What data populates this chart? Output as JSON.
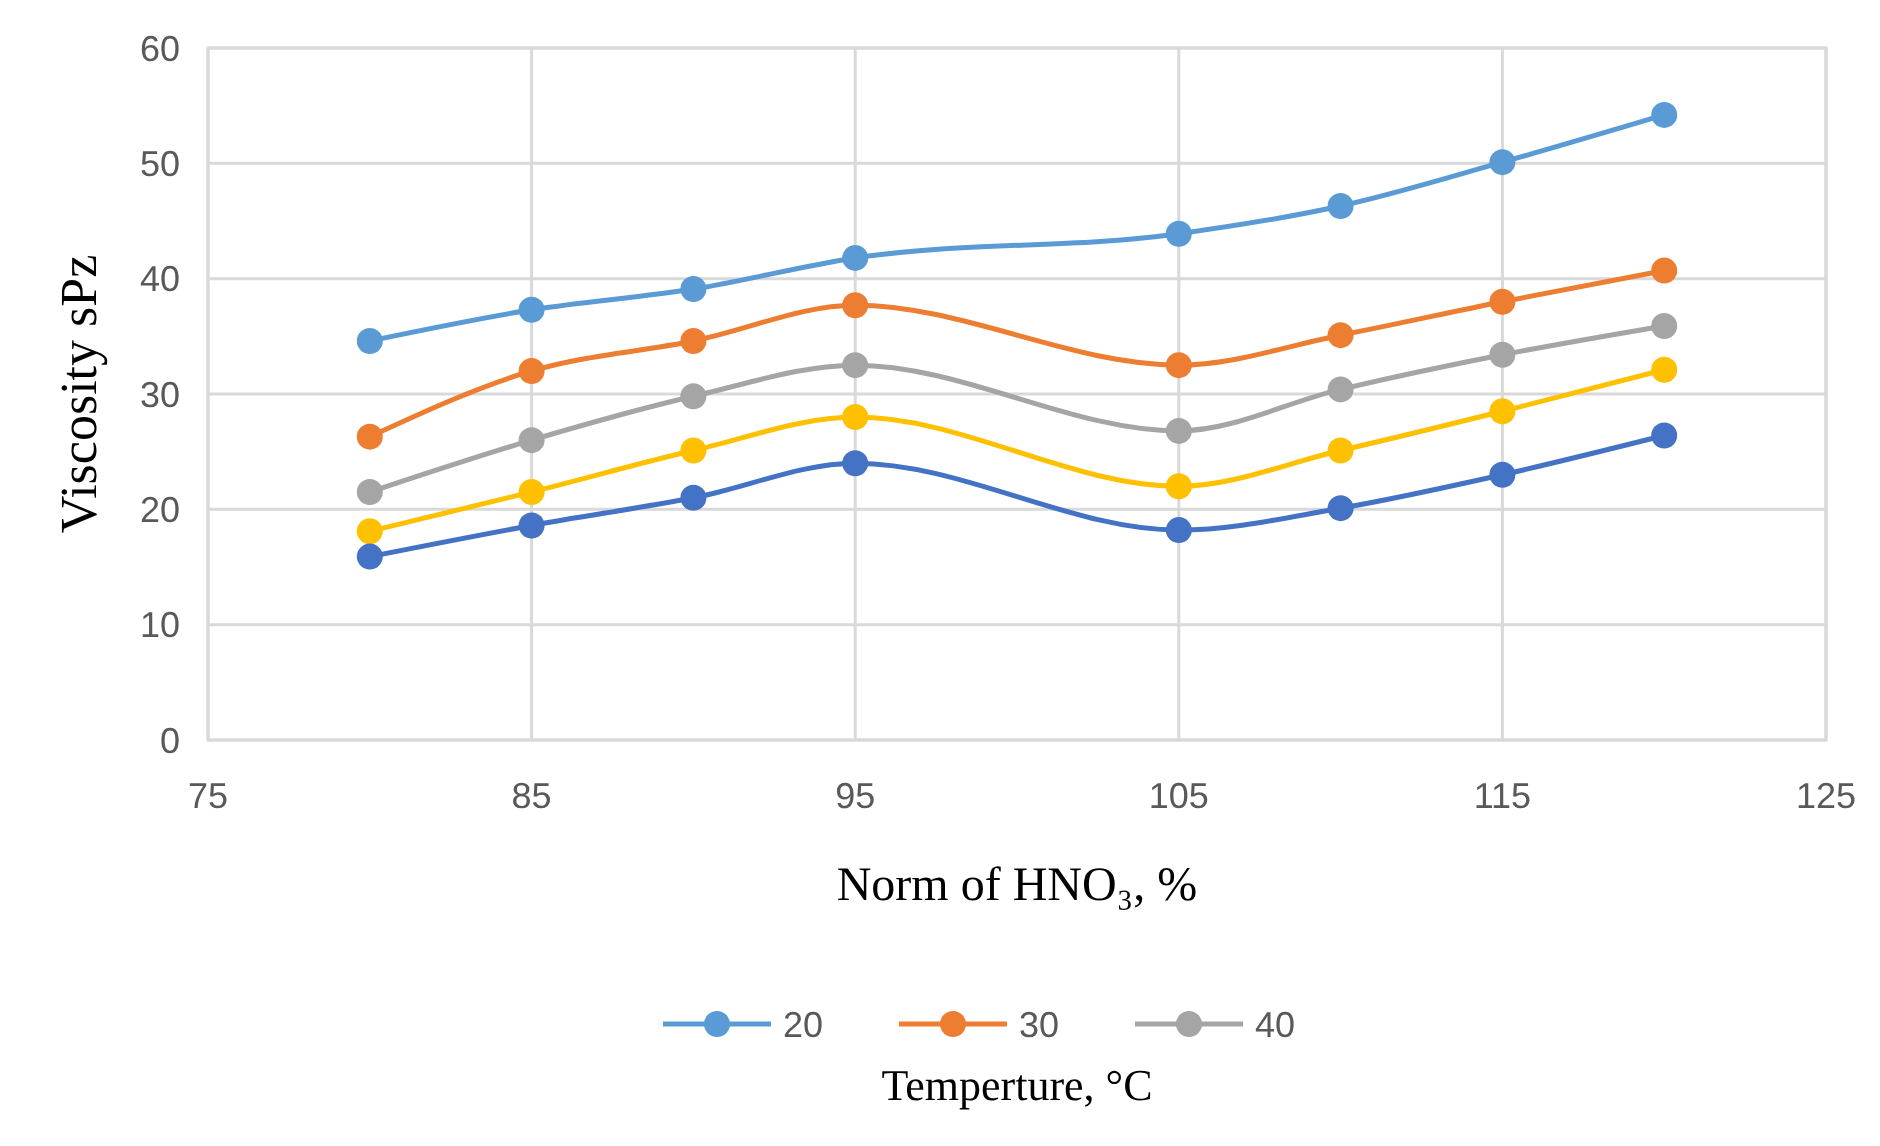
{
  "chart_data": {
    "type": "line",
    "xlabel": "Norm of HNO₃, %",
    "ylabel": "Viscosity sPz",
    "legend_title": "Temperture, °C",
    "x": [
      80,
      85,
      90,
      95,
      105,
      110,
      115,
      120
    ],
    "series": [
      {
        "name": "20",
        "color": "#5b9bd5",
        "values": [
          34.6,
          37.3,
          39.1,
          41.8,
          43.9,
          46.3,
          50.1,
          54.2
        ]
      },
      {
        "name": "30",
        "color": "#ed7d31",
        "values": [
          26.3,
          32.0,
          34.6,
          37.7,
          32.5,
          35.1,
          38.0,
          40.7
        ]
      },
      {
        "name": "40",
        "color": "#a5a5a5",
        "values": [
          21.5,
          26.0,
          29.8,
          32.5,
          26.8,
          30.4,
          33.4,
          35.9
        ]
      },
      {
        "color": "#ffc000",
        "values": [
          18.1,
          21.5,
          25.1,
          28.0,
          22.0,
          25.1,
          28.5,
          32.1
        ]
      },
      {
        "color": "#4472c4",
        "values": [
          15.9,
          18.6,
          21.0,
          24.0,
          18.2,
          20.1,
          23.0,
          26.4
        ]
      }
    ],
    "xlim": [
      75,
      125
    ],
    "xticks": [
      75,
      85,
      95,
      105,
      115,
      125
    ],
    "ylim": [
      0,
      60
    ],
    "yticks": [
      0,
      10,
      20,
      30,
      40,
      50,
      60
    ],
    "grid": true,
    "legend": "bottom",
    "marker": "circle",
    "line_style": "solid"
  }
}
